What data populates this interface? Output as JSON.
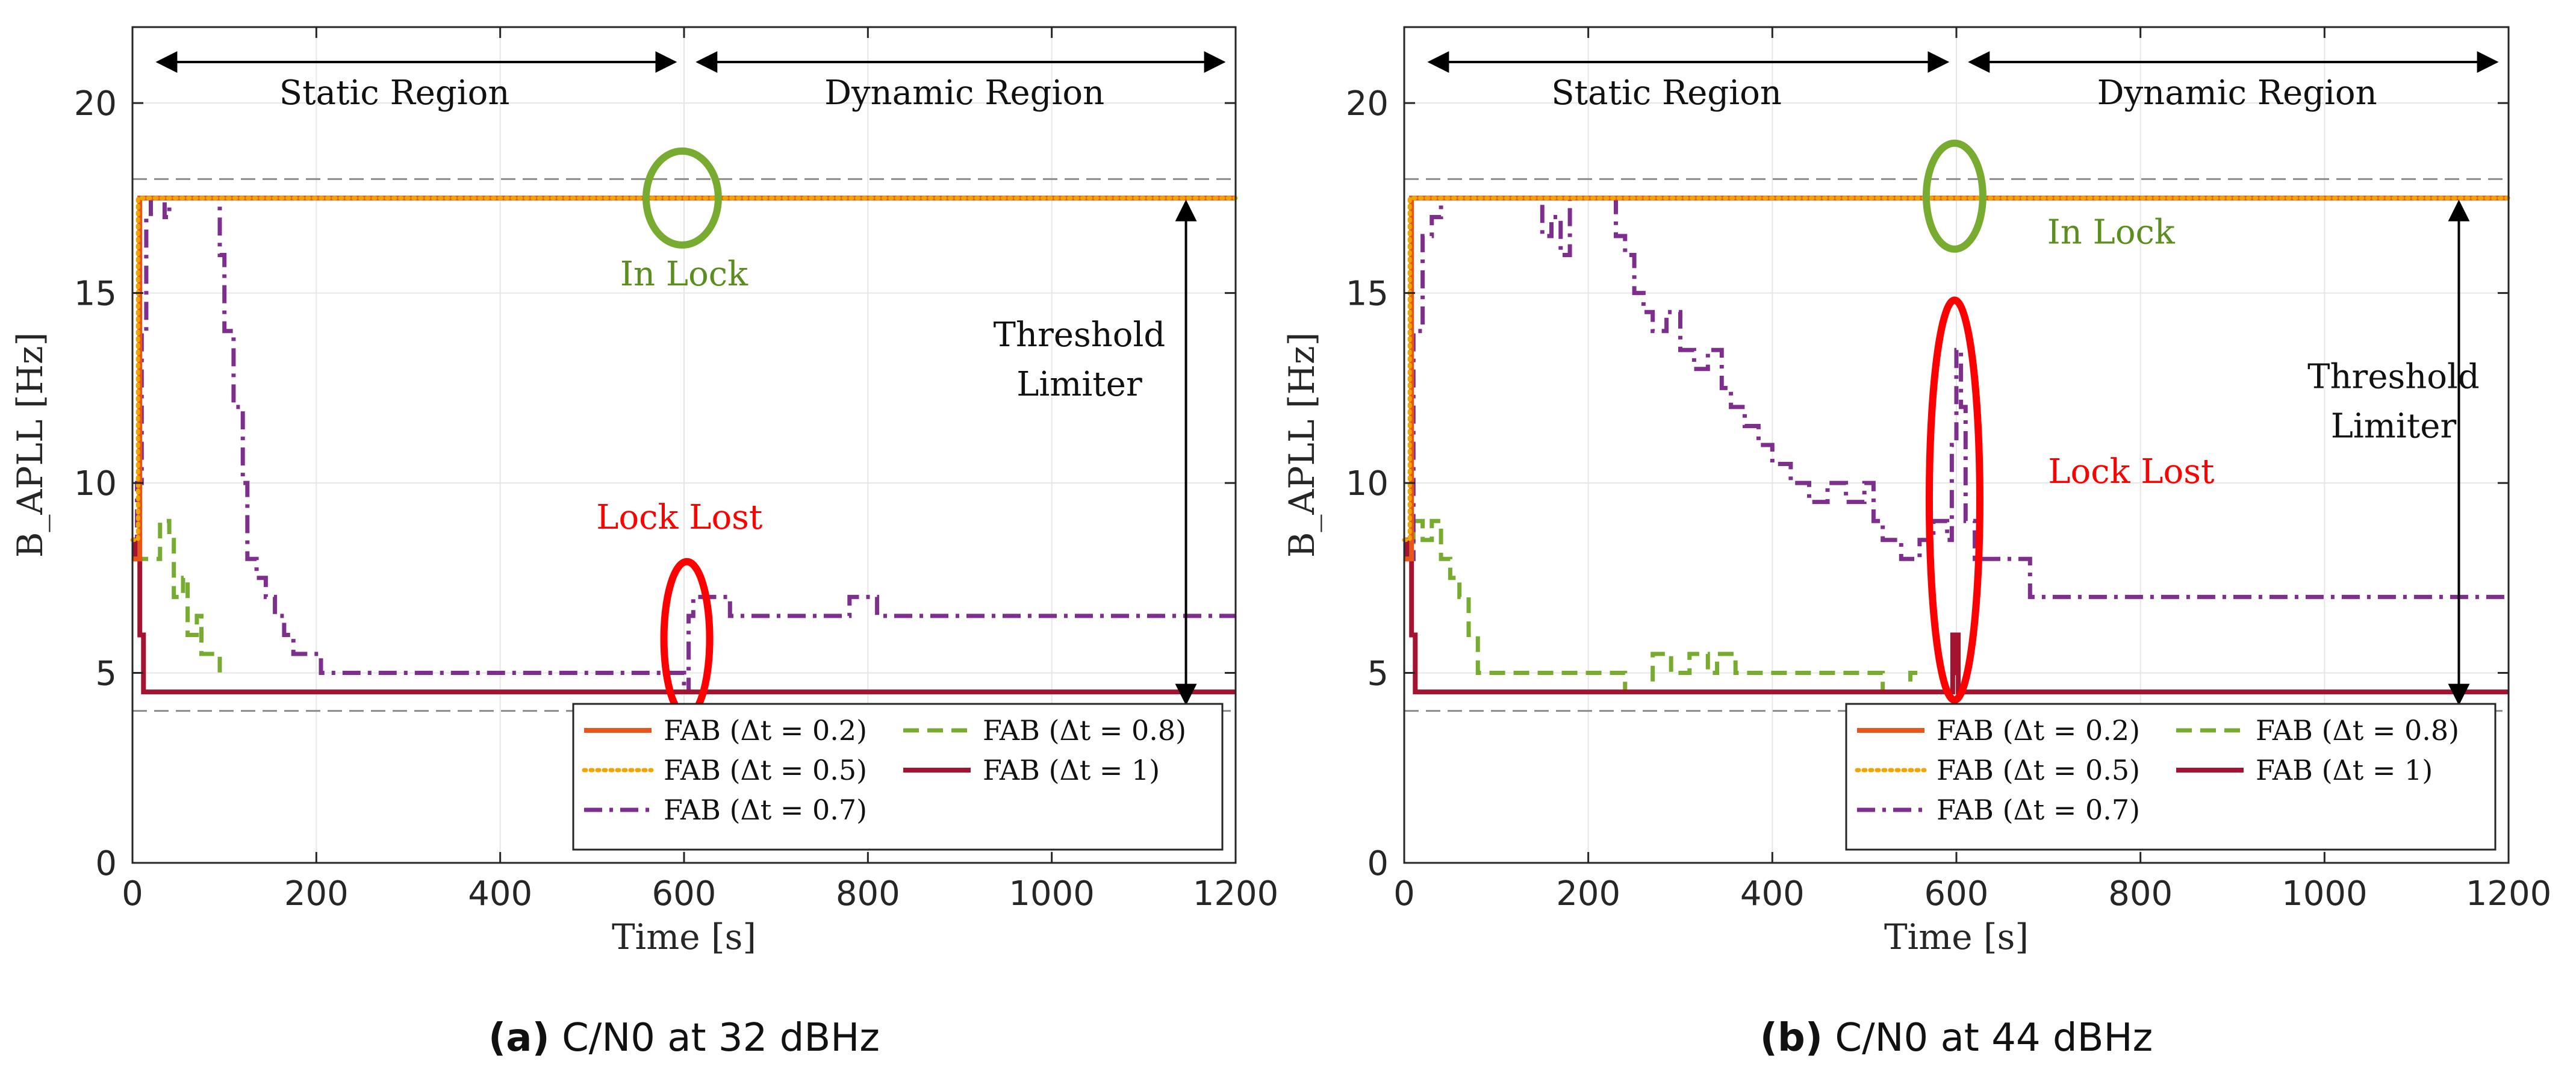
{
  "chart_data": [
    {
      "type": "line",
      "id": "a",
      "caption_label": "(a)",
      "caption_text": "C/N0 at 32 dBHz",
      "xlabel": "Time [s]",
      "ylabel": "B_APLL [Hz]",
      "xlim": [
        0,
        1200
      ],
      "ylim": [
        0,
        22
      ],
      "xticks": [
        0,
        200,
        400,
        600,
        800,
        1000,
        1200
      ],
      "yticks": [
        0,
        5,
        10,
        15,
        20
      ],
      "thresholds": [
        18,
        4
      ],
      "annotations": {
        "static_region": "Static Region",
        "dynamic_region": "Dynamic Region",
        "in_lock": "In Lock",
        "lock_lost": "Lock Lost",
        "threshold_line1": "Threshold",
        "threshold_line2": "Limiter"
      },
      "series": [
        {
          "name": "FAB (Δt = 0.2)",
          "style": "solid",
          "color": "#e8551b",
          "x": [
            0,
            4,
            8,
            1200
          ],
          "y": [
            8,
            8,
            17.5,
            17.5
          ]
        },
        {
          "name": "FAB (Δt = 0.5)",
          "style": "dotted",
          "color": "#f0a500",
          "x": [
            0,
            4,
            6,
            1200
          ],
          "y": [
            8.5,
            8.5,
            17.5,
            17.5
          ]
        },
        {
          "name": "FAB (Δt = 0.7)",
          "style": "dashdot",
          "color": "#7e2f8e",
          "x": [
            0,
            5,
            10,
            15,
            20,
            30,
            35,
            40,
            45,
            90,
            95,
            100,
            110,
            120,
            125,
            135,
            145,
            155,
            165,
            175,
            185,
            205,
            415,
            600,
            605,
            610,
            650,
            760,
            780,
            810,
            1200
          ],
          "y": [
            8,
            10,
            14,
            17,
            17.5,
            17.5,
            17,
            17.5,
            17.5,
            17.5,
            16,
            14,
            12,
            10,
            8,
            7.5,
            7,
            6.5,
            6,
            5.5,
            5.5,
            5,
            5,
            4.5,
            6.5,
            7,
            6.5,
            6.5,
            7,
            6.5,
            6.5
          ]
        },
        {
          "name": "FAB (Δt = 0.8)",
          "style": "dashed",
          "color": "#77ac30",
          "x": [
            0,
            25,
            30,
            40,
            45,
            55,
            60,
            70,
            75,
            85,
            95
          ],
          "y": [
            8,
            8,
            9,
            8.5,
            7,
            7.5,
            6,
            6.5,
            5.5,
            5.5,
            5
          ]
        },
        {
          "name": "FAB (Δt = 1)",
          "style": "solid",
          "color": "#a2142f",
          "x": [
            0,
            3,
            8,
            12,
            1200
          ],
          "y": [
            8.5,
            8,
            6,
            4.5,
            4.5
          ]
        }
      ]
    },
    {
      "type": "line",
      "id": "b",
      "caption_label": "(b)",
      "caption_text": "C/N0 at 44 dBHz",
      "xlabel": "Time [s]",
      "ylabel": "B_APLL [Hz]",
      "xlim": [
        0,
        1200
      ],
      "ylim": [
        0,
        22
      ],
      "xticks": [
        0,
        200,
        400,
        600,
        800,
        1000,
        1200
      ],
      "yticks": [
        0,
        5,
        10,
        15,
        20
      ],
      "thresholds": [
        18,
        4
      ],
      "annotations": {
        "static_region": "Static Region",
        "dynamic_region": "Dynamic Region",
        "in_lock": "In Lock",
        "lock_lost": "Lock Lost",
        "threshold_line1": "Threshold",
        "threshold_line2": "Limiter"
      },
      "series": [
        {
          "name": "FAB (Δt = 0.2)",
          "style": "solid",
          "color": "#e8551b",
          "x": [
            0,
            4,
            8,
            1200
          ],
          "y": [
            8,
            8,
            17.5,
            17.5
          ]
        },
        {
          "name": "FAB (Δt = 0.5)",
          "style": "dotted",
          "color": "#f0a500",
          "x": [
            0,
            4,
            6,
            1200
          ],
          "y": [
            8.5,
            8.5,
            17.5,
            17.5
          ]
        },
        {
          "name": "FAB (Δt = 0.7)",
          "style": "dashdot",
          "color": "#7e2f8e",
          "x": [
            0,
            10,
            20,
            30,
            40,
            60,
            140,
            150,
            160,
            170,
            180,
            220,
            230,
            240,
            250,
            260,
            270,
            285,
            300,
            315,
            330,
            345,
            355,
            370,
            385,
            400,
            420,
            440,
            460,
            480,
            500,
            510,
            520,
            540,
            560,
            575,
            590,
            595,
            600,
            605,
            610,
            620,
            680,
            1200
          ],
          "y": [
            8,
            14,
            16.5,
            17,
            17.5,
            17.5,
            17.5,
            16.5,
            17,
            16,
            17.5,
            17.5,
            16.5,
            16,
            15,
            14.5,
            14,
            14.5,
            13.5,
            13,
            13.5,
            12.5,
            12,
            11.5,
            11,
            10.5,
            10,
            9.5,
            10,
            9.5,
            10,
            9,
            8.5,
            8,
            8.5,
            9,
            8.5,
            11,
            13.5,
            12,
            9,
            8,
            7,
            7
          ]
        },
        {
          "name": "FAB (Δt = 0.8)",
          "style": "dashed",
          "color": "#77ac30",
          "x": [
            0,
            10,
            20,
            30,
            40,
            50,
            60,
            70,
            80,
            210,
            240,
            270,
            290,
            310,
            330,
            340,
            360,
            380,
            440,
            480,
            520,
            550,
            560
          ],
          "y": [
            8,
            9,
            8.5,
            9,
            8,
            7.5,
            7,
            6,
            5,
            5,
            4.5,
            5.5,
            5,
            5.5,
            5,
            5.5,
            5,
            5,
            5,
            5,
            4.5,
            5,
            5
          ]
        },
        {
          "name": "FAB (Δt = 1)",
          "style": "solid",
          "color": "#a2142f",
          "x": [
            0,
            3,
            8,
            12,
            594,
            596,
            598,
            600,
            602,
            604,
            1200
          ],
          "y": [
            8.5,
            8,
            6,
            4.5,
            4.5,
            6,
            5,
            6,
            4.5,
            4.5,
            4.5
          ]
        }
      ]
    }
  ]
}
